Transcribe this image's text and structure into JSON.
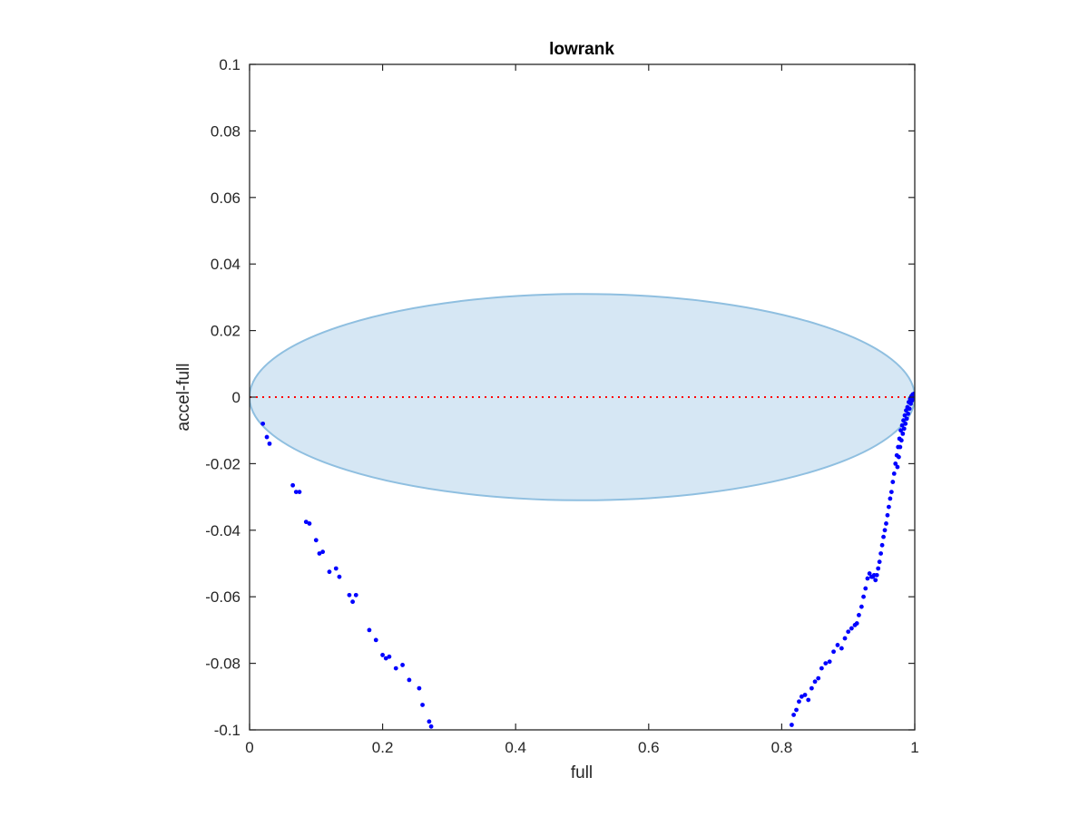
{
  "chart_data": {
    "type": "scatter",
    "title": "lowrank",
    "xlabel": "full",
    "ylabel": "accel-full",
    "xlim": [
      0,
      1
    ],
    "ylim": [
      -0.1,
      0.1
    ],
    "x_ticks": [
      0,
      0.2,
      0.4,
      0.6,
      0.8,
      1
    ],
    "x_tick_labels": [
      "0",
      "0.2",
      "0.4",
      "0.6",
      "0.8",
      "1"
    ],
    "y_ticks": [
      0.1,
      0.08,
      0.06,
      0.04,
      0.02,
      0,
      -0.02,
      -0.04,
      -0.06,
      -0.08,
      -0.1
    ],
    "y_tick_labels": [
      "0.1",
      "0.08",
      "0.06",
      "0.04",
      "0.02",
      "0",
      "-0.02",
      "-0.04",
      "-0.06",
      "-0.08",
      "-0.1"
    ],
    "grid": false,
    "reference_line": {
      "y": 0,
      "color": "#ff0000",
      "style": "dotted"
    },
    "ellipse": {
      "cx": 0.5,
      "cy": 0,
      "rx": 0.5,
      "ry": 0.031,
      "fill": "#d6e7f4",
      "stroke": "#8fbfe0"
    },
    "series": [
      {
        "color": "#0000ff",
        "x": [
          0.02,
          0.026,
          0.03,
          0.065,
          0.07,
          0.075,
          0.085,
          0.09,
          0.1,
          0.105,
          0.11,
          0.12,
          0.13,
          0.135,
          0.15,
          0.155,
          0.16,
          0.18,
          0.19,
          0.2,
          0.205,
          0.21,
          0.22,
          0.23,
          0.24,
          0.255,
          0.26,
          0.27,
          0.273
        ],
        "y": [
          -0.008,
          -0.012,
          -0.014,
          -0.0265,
          -0.0285,
          -0.0285,
          -0.0375,
          -0.038,
          -0.043,
          -0.047,
          -0.0465,
          -0.0525,
          -0.0515,
          -0.054,
          -0.0595,
          -0.0615,
          -0.0595,
          -0.07,
          -0.073,
          -0.0775,
          -0.0785,
          -0.078,
          -0.0815,
          -0.0805,
          -0.085,
          -0.0875,
          -0.0925,
          -0.0975,
          -0.099
        ]
      },
      {
        "color": "#0000ff",
        "x": [
          0.815,
          0.818,
          0.822,
          0.826,
          0.83,
          0.835,
          0.84,
          0.845,
          0.85,
          0.855,
          0.86,
          0.866,
          0.872,
          0.878,
          0.884,
          0.89,
          0.895,
          0.9,
          0.905,
          0.91,
          0.913,
          0.916,
          0.92,
          0.923,
          0.926,
          0.929,
          0.932,
          0.935,
          0.937,
          0.939,
          0.941,
          0.943,
          0.945,
          0.947,
          0.949,
          0.951,
          0.953,
          0.955,
          0.957,
          0.959,
          0.961,
          0.963,
          0.965,
          0.967,
          0.969,
          0.971,
          0.973,
          0.975,
          0.977,
          0.979,
          0.981,
          0.983,
          0.985,
          0.987,
          0.989,
          0.991,
          0.993,
          0.995,
          0.997,
          0.999,
          1.0,
          0.998,
          0.996,
          0.994,
          0.992,
          0.99,
          0.988,
          0.986,
          0.984,
          0.982,
          0.98,
          0.978,
          0.976,
          0.974
        ],
        "y": [
          -0.0985,
          -0.0955,
          -0.094,
          -0.0915,
          -0.09,
          -0.0895,
          -0.091,
          -0.0875,
          -0.0855,
          -0.0845,
          -0.0815,
          -0.08,
          -0.0795,
          -0.0765,
          -0.0745,
          -0.0755,
          -0.0725,
          -0.0705,
          -0.0695,
          -0.0685,
          -0.068,
          -0.0655,
          -0.063,
          -0.06,
          -0.0575,
          -0.0545,
          -0.053,
          -0.054,
          -0.054,
          -0.0535,
          -0.055,
          -0.0535,
          -0.0515,
          -0.0495,
          -0.047,
          -0.0445,
          -0.042,
          -0.04,
          -0.038,
          -0.0355,
          -0.033,
          -0.0305,
          -0.0285,
          -0.0255,
          -0.023,
          -0.02,
          -0.0175,
          -0.015,
          -0.0125,
          -0.01,
          -0.0085,
          -0.007,
          -0.0055,
          -0.004,
          -0.003,
          -0.0015,
          -0.0005,
          0.0003,
          0.0008,
          0.001,
          0.0005,
          -0.0002,
          -0.001,
          -0.002,
          -0.0035,
          -0.005,
          -0.0065,
          -0.008,
          -0.0095,
          -0.011,
          -0.013,
          -0.015,
          -0.018,
          -0.021
        ]
      }
    ]
  }
}
